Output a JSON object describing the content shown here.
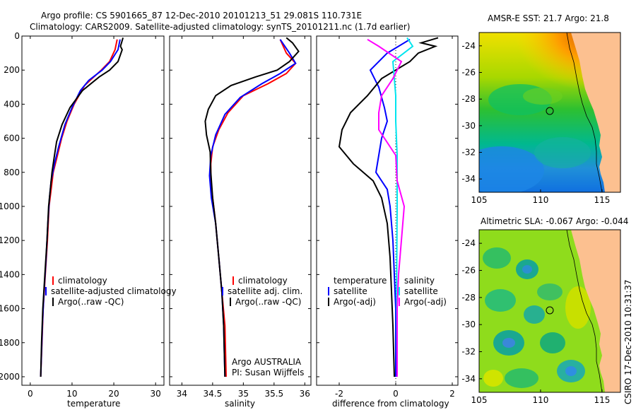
{
  "header": {
    "line1": "Argo profile: CS 5901665_87 12-Dec-2010 20101213_51 29.081S 110.731E",
    "line2": "Climatology: CARS2009. Satellite-adjusted climatology: synTS_20101211.nc (1.7d earlier)"
  },
  "credit": "CSIRO 17-Dec-2010 10:31:37",
  "colors": {
    "climatology": "#ff0000",
    "satellite": "#0000ff",
    "argo": "#000000",
    "satellite_salinity": "#00e5ee",
    "argo_salinity": "#ff00ff",
    "land": "#fcc090"
  },
  "chart_data": [
    {
      "type": "line",
      "name": "temperature-profile",
      "xlabel": "temperature",
      "ylabel": "",
      "xlim": [
        -2,
        32
      ],
      "ylim": [
        2050,
        0
      ],
      "xticks": [
        0,
        10,
        20,
        30
      ],
      "yticks": [
        0,
        200,
        400,
        600,
        800,
        1000,
        1200,
        1400,
        1600,
        1800,
        2000
      ],
      "legend": {
        "placement": "bottom-right",
        "entries": [
          "climatology",
          "satellite-adjusted climatology",
          "Argo(..raw -QC)"
        ]
      },
      "series": [
        {
          "name": "climatology",
          "color": "#ff0000",
          "points": [
            [
              20.8,
              20
            ],
            [
              20.3,
              80
            ],
            [
              19.0,
              150
            ],
            [
              17.0,
              200
            ],
            [
              13.0,
              290
            ],
            [
              10.5,
              400
            ],
            [
              8.8,
              500
            ],
            [
              7.5,
              600
            ],
            [
              6.5,
              700
            ],
            [
              5.5,
              800
            ],
            [
              5.0,
              900
            ],
            [
              4.5,
              1000
            ],
            [
              4.1,
              1200
            ],
            [
              3.6,
              1400
            ],
            [
              3.1,
              1600
            ],
            [
              2.8,
              1800
            ],
            [
              2.5,
              2000
            ]
          ]
        },
        {
          "name": "satellite-adjusted climatology",
          "color": "#0000ff",
          "points": [
            [
              21.5,
              20
            ],
            [
              21.0,
              80
            ],
            [
              19.2,
              150
            ],
            [
              17.2,
              200
            ],
            [
              14.0,
              260
            ],
            [
              12.0,
              320
            ],
            [
              10.0,
              420
            ],
            [
              8.3,
              520
            ],
            [
              6.8,
              650
            ],
            [
              5.8,
              750
            ],
            [
              5.0,
              850
            ],
            [
              4.6,
              950
            ],
            [
              4.2,
              1100
            ],
            [
              3.8,
              1300
            ],
            [
              3.3,
              1500
            ],
            [
              2.9,
              1700
            ],
            [
              2.5,
              2000
            ]
          ]
        },
        {
          "name": "Argo(..raw -QC)",
          "color": "#000000",
          "points": [
            [
              22.2,
              10
            ],
            [
              21.6,
              60
            ],
            [
              22.0,
              80
            ],
            [
              21.0,
              150
            ],
            [
              19.0,
              200
            ],
            [
              16.5,
              240
            ],
            [
              12.5,
              320
            ],
            [
              9.5,
              420
            ],
            [
              7.6,
              520
            ],
            [
              6.3,
              620
            ],
            [
              5.8,
              700
            ],
            [
              5.2,
              800
            ],
            [
              4.8,
              900
            ],
            [
              4.4,
              1000
            ],
            [
              4.0,
              1200
            ],
            [
              3.5,
              1400
            ],
            [
              3.0,
              1600
            ],
            [
              2.7,
              1800
            ],
            [
              2.5,
              2000
            ]
          ]
        }
      ]
    },
    {
      "type": "line",
      "name": "salinity-profile",
      "xlabel": "salinity",
      "ylabel": "",
      "xlim": [
        33.8,
        36.1
      ],
      "ylim": [
        2050,
        0
      ],
      "xticks": [
        34,
        34.5,
        35,
        35.5,
        36
      ],
      "legend": {
        "placement": "bottom-right",
        "entries": [
          "climatology",
          "satellite adj. clim.",
          "Argo(..raw -QC)"
        ]
      },
      "annotations": [
        "Argo AUSTRALIA",
        "PI: Susan Wijffels"
      ],
      "series": [
        {
          "name": "climatology",
          "color": "#ff0000",
          "points": [
            [
              35.6,
              20
            ],
            [
              35.7,
              100
            ],
            [
              35.85,
              160
            ],
            [
              35.7,
              220
            ],
            [
              35.4,
              280
            ],
            [
              35.0,
              350
            ],
            [
              34.75,
              450
            ],
            [
              34.6,
              550
            ],
            [
              34.5,
              650
            ],
            [
              34.47,
              750
            ],
            [
              34.47,
              850
            ],
            [
              34.5,
              950
            ],
            [
              34.55,
              1100
            ],
            [
              34.6,
              1300
            ],
            [
              34.65,
              1500
            ],
            [
              34.7,
              1700
            ],
            [
              34.72,
              2000
            ]
          ]
        },
        {
          "name": "satellite adj. clim.",
          "color": "#0000ff",
          "points": [
            [
              35.6,
              20
            ],
            [
              35.75,
              100
            ],
            [
              35.85,
              160
            ],
            [
              35.6,
              220
            ],
            [
              35.3,
              280
            ],
            [
              34.95,
              360
            ],
            [
              34.7,
              460
            ],
            [
              34.55,
              580
            ],
            [
              34.47,
              700
            ],
            [
              34.45,
              820
            ],
            [
              34.48,
              950
            ],
            [
              34.55,
              1100
            ],
            [
              34.6,
              1300
            ],
            [
              34.65,
              1500
            ],
            [
              34.68,
              1700
            ],
            [
              34.7,
              2000
            ]
          ]
        },
        {
          "name": "Argo(..raw -QC)",
          "color": "#000000",
          "points": [
            [
              35.7,
              10
            ],
            [
              35.8,
              40
            ],
            [
              35.9,
              90
            ],
            [
              35.75,
              150
            ],
            [
              35.55,
              200
            ],
            [
              35.2,
              240
            ],
            [
              34.8,
              290
            ],
            [
              34.55,
              350
            ],
            [
              34.43,
              430
            ],
            [
              34.38,
              500
            ],
            [
              34.4,
              580
            ],
            [
              34.46,
              680
            ],
            [
              34.47,
              800
            ],
            [
              34.5,
              950
            ],
            [
              34.55,
              1100
            ],
            [
              34.6,
              1300
            ],
            [
              34.65,
              1500
            ],
            [
              34.68,
              1700
            ],
            [
              34.7,
              2000
            ]
          ]
        }
      ]
    },
    {
      "type": "line",
      "name": "difference-profile",
      "xlabel": "difference from climatology",
      "ylabel": "",
      "xlim": [
        -2.8,
        2.2
      ],
      "ylim": [
        2050,
        0
      ],
      "xticks": [
        -2,
        0,
        2
      ],
      "legend": {
        "placement": "bottom",
        "entries": [
          "temperature",
          "satellite",
          "Argo(-adj)",
          "salinity",
          "satellite",
          "Argo(-adj)"
        ]
      },
      "series": [
        {
          "name": "temperature satellite",
          "color": "#0000ff",
          "points": [
            [
              0.5,
              20
            ],
            [
              -0.3,
              100
            ],
            [
              -0.9,
              200
            ],
            [
              -0.6,
              300
            ],
            [
              -0.4,
              420
            ],
            [
              -0.3,
              500
            ],
            [
              -0.5,
              600
            ],
            [
              -0.6,
              700
            ],
            [
              -0.7,
              800
            ],
            [
              -0.3,
              900
            ],
            [
              -0.2,
              1000
            ],
            [
              -0.1,
              1200
            ],
            [
              -0.05,
              1400
            ],
            [
              0,
              1600
            ],
            [
              0,
              1800
            ],
            [
              0,
              2000
            ]
          ]
        },
        {
          "name": "temperature Argo(-adj)",
          "color": "#000000",
          "points": [
            [
              1.5,
              10
            ],
            [
              0.9,
              40
            ],
            [
              1.4,
              60
            ],
            [
              0.8,
              100
            ],
            [
              0.5,
              150
            ],
            [
              -0.5,
              250
            ],
            [
              -1.0,
              350
            ],
            [
              -1.6,
              450
            ],
            [
              -1.9,
              550
            ],
            [
              -2.0,
              650
            ],
            [
              -1.5,
              750
            ],
            [
              -0.8,
              850
            ],
            [
              -0.5,
              950
            ],
            [
              -0.3,
              1100
            ],
            [
              -0.2,
              1300
            ],
            [
              -0.15,
              1500
            ],
            [
              -0.1,
              1700
            ],
            [
              -0.05,
              2000
            ]
          ]
        },
        {
          "name": "salinity satellite",
          "color": "#00e5ee",
          "points": [
            [
              0.4,
              10
            ],
            [
              0.6,
              60
            ],
            [
              -0.1,
              150
            ],
            [
              -0.05,
              250
            ],
            [
              0,
              350
            ],
            [
              0,
              500
            ],
            [
              0.05,
              700
            ],
            [
              0.05,
              1000
            ],
            [
              0.03,
              1500
            ],
            [
              0.05,
              2000
            ]
          ]
        },
        {
          "name": "salinity Argo(-adj)",
          "color": "#ff00ff",
          "points": [
            [
              -1.0,
              20
            ],
            [
              -0.6,
              60
            ],
            [
              0.2,
              150
            ],
            [
              -0.1,
              250
            ],
            [
              -0.5,
              350
            ],
            [
              -0.6,
              450
            ],
            [
              -0.6,
              550
            ],
            [
              0.0,
              700
            ],
            [
              0.05,
              850
            ],
            [
              0.3,
              1000
            ],
            [
              0.2,
              1200
            ],
            [
              0.1,
              1400
            ],
            [
              0.05,
              1600
            ],
            [
              0.05,
              2000
            ]
          ]
        }
      ]
    }
  ],
  "maps": [
    {
      "name": "amsr-sst-map",
      "title": "AMSR-E SST: 21.7 Argo: 21.8",
      "xticks": [
        105,
        110,
        115
      ],
      "yticks": [
        -24,
        -26,
        -28,
        -30,
        -32,
        -34
      ],
      "xlim": [
        105,
        116.5
      ],
      "ylim": [
        -35,
        -23
      ],
      "argo_position": [
        110.73,
        -29.08
      ]
    },
    {
      "name": "altimetric-sla-map",
      "title": "Altimetric SLA: -0.067 Argo: -0.044",
      "xticks": [
        105,
        110,
        115
      ],
      "yticks": [
        -24,
        -26,
        -28,
        -30,
        -32,
        -34
      ],
      "xlim": [
        105,
        116.5
      ],
      "ylim": [
        -35,
        -23
      ],
      "argo_position": [
        110.73,
        -29.08
      ]
    }
  ]
}
